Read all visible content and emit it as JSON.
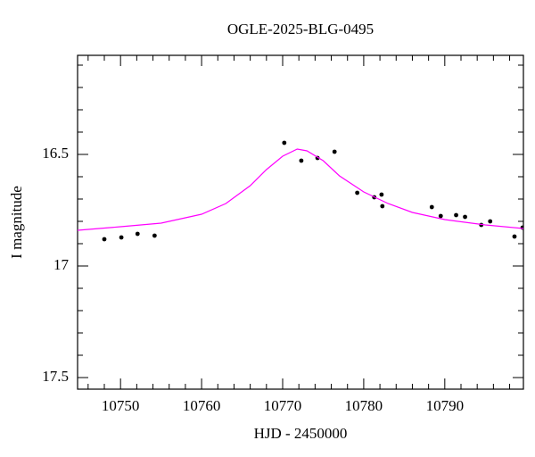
{
  "chart_data": {
    "type": "scatter",
    "title": "OGLE-2025-BLG-0495",
    "x_label": "HJD - 2450000",
    "y_label": "I magnitude",
    "xlim": [
      10744.7,
      10799.7
    ],
    "ylim": [
      16.056,
      17.552
    ],
    "y_inverted": true,
    "xticks": [
      10750,
      10760,
      10770,
      10780,
      10790
    ],
    "xticks_minor": [
      10746,
      10748,
      10752,
      10754,
      10756,
      10758,
      10762,
      10764,
      10766,
      10768,
      10772,
      10774,
      10776,
      10778,
      10782,
      10784,
      10786,
      10788,
      10792,
      10794,
      10796,
      10798
    ],
    "yticks": [
      16.5,
      17,
      17.5
    ],
    "yticks_minor": [
      16.1,
      16.2,
      16.3,
      16.4,
      16.6,
      16.7,
      16.8,
      16.9,
      17.1,
      17.2,
      17.3,
      17.4
    ],
    "series": [
      {
        "mode": "markers",
        "color": "#000000",
        "x": [
          10748.0,
          10750.1,
          10752.1,
          10754.2,
          10770.2,
          10772.3,
          10774.3,
          10776.4,
          10779.2,
          10781.3,
          10782.2,
          10782.3,
          10788.4,
          10789.5,
          10791.4,
          10792.5,
          10794.5,
          10795.6,
          10798.6,
          10799.6
        ],
        "values": [
          16.88,
          16.872,
          16.856,
          16.864,
          16.448,
          16.528,
          16.516,
          16.488,
          16.672,
          16.692,
          16.68,
          16.732,
          16.736,
          16.776,
          16.772,
          16.78,
          16.816,
          16.8,
          16.868,
          16.828
        ],
        "errors": [
          0.008,
          0.008,
          0.008,
          0.008,
          0.008,
          0.008,
          0.008,
          0.008,
          0.008,
          0.008,
          0.008,
          0.008,
          0.008,
          0.008,
          0.008,
          0.008,
          0.008,
          0.008,
          0.008,
          0.008
        ]
      },
      {
        "mode": "line",
        "color": "#ff00ff",
        "x": [
          10744.7,
          10750,
          10755,
          10760,
          10763,
          10766,
          10768,
          10770,
          10771.8,
          10773,
          10775,
          10777,
          10780,
          10783,
          10786,
          10790,
          10795,
          10799.7
        ],
        "values": [
          16.84,
          16.824,
          16.808,
          16.768,
          16.72,
          16.64,
          16.568,
          16.508,
          16.476,
          16.484,
          16.528,
          16.596,
          16.668,
          16.72,
          16.76,
          16.792,
          16.816,
          16.832
        ]
      }
    ]
  }
}
